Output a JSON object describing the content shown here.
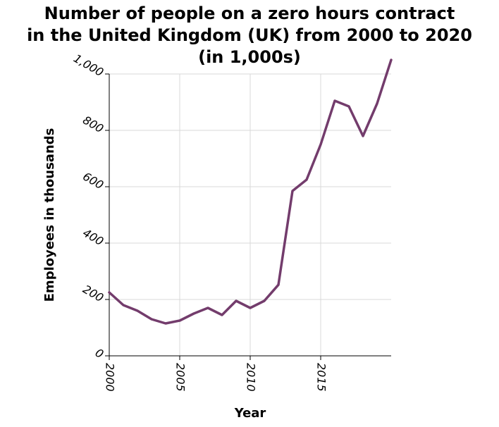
{
  "chart_data": {
    "type": "line",
    "title": "Number of people on a zero hours contract\nin the United Kingdom (UK) from 2000 to 2020\n(in 1,000s)",
    "xlabel": "Year",
    "ylabel": "Employees in thousands",
    "xlim": [
      2000,
      2020
    ],
    "ylim": [
      0,
      1000
    ],
    "x_ticks": [
      2000,
      2005,
      2010,
      2015
    ],
    "x_tick_labels": [
      "2000",
      "2005",
      "2010",
      "2015"
    ],
    "y_ticks": [
      0,
      200,
      400,
      600,
      800,
      1000
    ],
    "y_tick_labels": [
      "0",
      "200",
      "400",
      "600",
      "800",
      "1,000"
    ],
    "grid": true,
    "series": [
      {
        "color": "#733c6c",
        "x": [
          2000,
          2001,
          2002,
          2003,
          2004,
          2005,
          2006,
          2007,
          2008,
          2009,
          2010,
          2011,
          2012,
          2013,
          2014,
          2015,
          2016,
          2017,
          2018,
          2019,
          2020
        ],
        "values": [
          225,
          180,
          160,
          130,
          115,
          125,
          150,
          170,
          145,
          195,
          170,
          195,
          252,
          585,
          625,
          750,
          905,
          885,
          780,
          895,
          1050
        ]
      }
    ]
  }
}
